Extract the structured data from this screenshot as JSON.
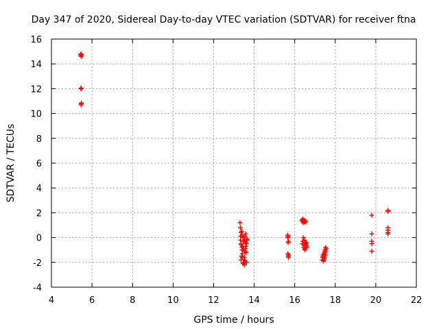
{
  "chart_data": {
    "type": "scatter",
    "title": "Day 347 of 2020, Sidereal Day-to-day VTEC variation (SDTVAR) for receiver ftna",
    "xlabel": "GPS time / hours",
    "ylabel": "SDTVAR / TECUs",
    "xlim": [
      4,
      22
    ],
    "ylim": [
      -4,
      16
    ],
    "xticks": [
      "4",
      "6",
      "8",
      "10",
      "12",
      "14",
      "16",
      "18",
      "20",
      "22"
    ],
    "yticks": [
      "-4",
      "-2",
      "0",
      "2",
      "4",
      "6",
      "8",
      "10",
      "12",
      "14",
      "16"
    ],
    "grid": true,
    "marker": "+",
    "color": "#ff0000",
    "series": [
      {
        "name": "SDTVAR",
        "x": [
          5.45,
          5.47,
          5.45,
          5.46,
          5.48,
          5.46,
          5.47,
          5.45,
          5.48,
          5.47,
          13.3,
          13.32,
          13.35,
          13.33,
          13.38,
          13.36,
          13.4,
          13.42,
          13.35,
          13.4,
          13.45,
          13.38,
          13.5,
          13.48,
          13.52,
          13.55,
          13.45,
          13.4,
          13.5,
          13.55,
          13.58,
          13.6,
          13.62,
          13.6,
          13.52,
          13.48,
          13.65,
          13.58,
          13.62,
          13.55,
          13.35,
          13.42,
          13.47,
          13.57,
          13.63,
          13.33,
          13.43,
          13.53,
          15.65,
          15.67,
          15.7,
          15.66,
          15.68,
          15.69,
          15.7,
          15.67,
          15.66,
          16.35,
          16.38,
          16.4,
          16.42,
          16.45,
          16.48,
          16.5,
          16.52,
          16.55,
          16.4,
          16.45,
          16.5,
          16.55,
          16.58,
          16.6,
          16.42,
          16.47,
          16.52,
          16.38,
          16.44,
          16.5,
          16.56,
          16.6,
          17.35,
          17.38,
          17.4,
          17.42,
          17.45,
          17.48,
          17.5,
          17.52,
          17.55,
          17.4,
          17.45,
          17.5,
          17.42,
          17.47,
          17.52,
          19.8,
          19.8,
          19.8,
          19.8,
          19.8,
          20.6,
          20.6,
          20.6,
          20.6,
          20.6,
          20.6
        ],
        "y": [
          14.8,
          14.6,
          12.0,
          12.0,
          10.8,
          10.7,
          10.85,
          14.7,
          14.75,
          12.05,
          1.2,
          0.8,
          0.4,
          -0.2,
          0.5,
          -0.6,
          -1.0,
          -1.3,
          -0.5,
          0.2,
          0.0,
          -1.5,
          -1.8,
          -2.0,
          -2.2,
          -1.9,
          -2.1,
          -0.8,
          -0.3,
          0.1,
          -0.4,
          -1.2,
          -2.0,
          -0.7,
          -1.6,
          -0.9,
          -0.2,
          0.3,
          -0.5,
          -1.1,
          -1.8,
          -1.6,
          -0.3,
          -0.9,
          -0.1,
          0.1,
          -0.7,
          -0.2,
          0.2,
          0.1,
          -0.3,
          -1.3,
          -1.5,
          -1.6,
          -1.4,
          -0.4,
          0.0,
          1.4,
          1.3,
          1.5,
          1.2,
          1.4,
          1.3,
          1.35,
          1.25,
          1.3,
          -0.3,
          -0.6,
          -0.9,
          -0.5,
          -0.7,
          -0.8,
          0.0,
          -0.2,
          -0.4,
          -0.5,
          -0.8,
          -1.0,
          -0.6,
          -0.4,
          -1.8,
          -1.6,
          -1.4,
          -1.9,
          -1.7,
          -1.2,
          -1.0,
          -0.8,
          -0.9,
          -1.5,
          -1.3,
          -1.1,
          -1.8,
          -1.6,
          -1.4,
          1.8,
          0.3,
          -0.3,
          -0.5,
          -1.1,
          2.2,
          2.1,
          0.8,
          0.6,
          0.4,
          0.3
        ]
      }
    ]
  }
}
